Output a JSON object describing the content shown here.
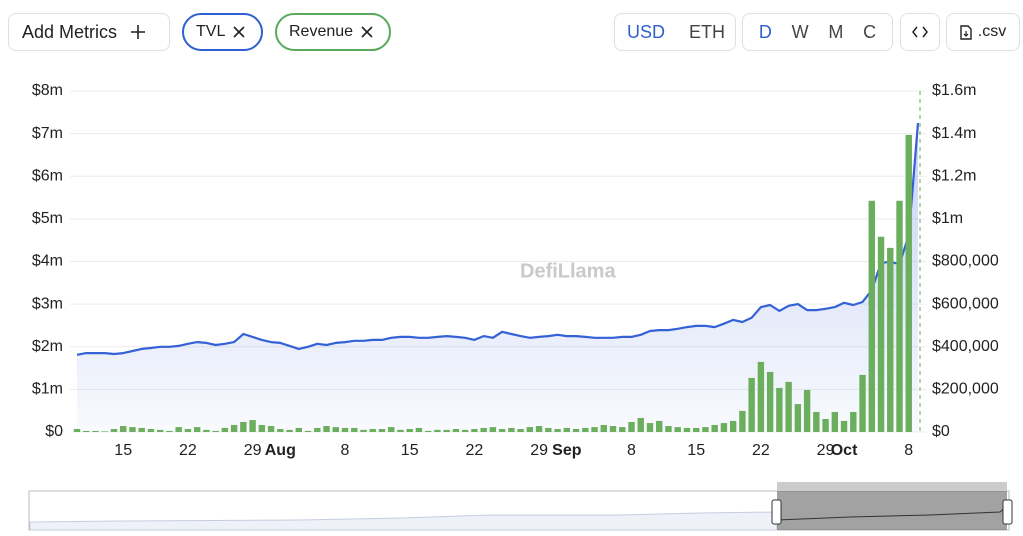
{
  "toolbar": {
    "add_metrics": "Add Metrics",
    "currencies": [
      "USD",
      "ETH"
    ],
    "intervals": [
      "D",
      "W",
      "M",
      "C"
    ],
    "csv": ".csv"
  },
  "chart_data": {
    "type": "combo",
    "watermark": "DefiLlama",
    "categories": [
      null,
      null,
      null,
      null,
      null,
      "15",
      null,
      null,
      null,
      null,
      null,
      null,
      "22",
      null,
      null,
      null,
      null,
      null,
      null,
      "29",
      null,
      null,
      "Aug",
      null,
      null,
      null,
      null,
      null,
      null,
      "8",
      null,
      null,
      null,
      null,
      null,
      null,
      "15",
      null,
      null,
      null,
      null,
      null,
      null,
      "22",
      null,
      null,
      null,
      null,
      null,
      null,
      "29",
      null,
      null,
      "Sep",
      null,
      null,
      null,
      null,
      null,
      null,
      "8",
      null,
      null,
      null,
      null,
      null,
      null,
      "15",
      null,
      null,
      null,
      null,
      null,
      null,
      "22",
      null,
      null,
      null,
      null,
      null,
      null,
      "29",
      null,
      "Oct",
      null,
      null,
      null,
      null,
      null,
      null,
      "8",
      null
    ],
    "series": [
      {
        "name": "TVL",
        "type": "line",
        "color": "#3461d6",
        "values": [
          1810000,
          1850000,
          1850000,
          1850000,
          1830000,
          1850000,
          1900000,
          1950000,
          1970000,
          2000000,
          2000000,
          2020000,
          2070000,
          2110000,
          2090000,
          2040000,
          2070000,
          2110000,
          2300000,
          2230000,
          2160000,
          2110000,
          2090000,
          2020000,
          1950000,
          2000000,
          2070000,
          2040000,
          2090000,
          2110000,
          2140000,
          2140000,
          2160000,
          2160000,
          2210000,
          2230000,
          2230000,
          2210000,
          2210000,
          2230000,
          2250000,
          2230000,
          2210000,
          2160000,
          2250000,
          2210000,
          2350000,
          2300000,
          2250000,
          2210000,
          2230000,
          2250000,
          2280000,
          2250000,
          2250000,
          2230000,
          2210000,
          2210000,
          2210000,
          2230000,
          2230000,
          2280000,
          2370000,
          2390000,
          2390000,
          2420000,
          2460000,
          2490000,
          2490000,
          2460000,
          2540000,
          2630000,
          2580000,
          2680000,
          2930000,
          2980000,
          2840000,
          2960000,
          3000000,
          2860000,
          2860000,
          2890000,
          2930000,
          3030000,
          2980000,
          3050000,
          3330000,
          3970000,
          3990000,
          3940000,
          4620000,
          7250000
        ]
      },
      {
        "name": "Revenue",
        "type": "bar",
        "color": "#6aae5e",
        "axis": "y2",
        "values": [
          14000,
          5000,
          5000,
          3000,
          14000,
          28000,
          23000,
          19000,
          14000,
          10000,
          5000,
          23000,
          14000,
          23000,
          10000,
          5000,
          19000,
          33000,
          47000,
          56000,
          33000,
          28000,
          14000,
          10000,
          19000,
          5000,
          19000,
          28000,
          23000,
          19000,
          19000,
          10000,
          14000,
          14000,
          23000,
          10000,
          14000,
          19000,
          5000,
          10000,
          10000,
          14000,
          10000,
          14000,
          19000,
          23000,
          14000,
          19000,
          14000,
          23000,
          28000,
          19000,
          14000,
          19000,
          14000,
          19000,
          23000,
          33000,
          28000,
          23000,
          47000,
          66000,
          42000,
          52000,
          28000,
          23000,
          19000,
          19000,
          23000,
          33000,
          42000,
          52000,
          99000,
          254000,
          329000,
          282000,
          207000,
          235000,
          131000,
          197000,
          94000,
          61000,
          94000,
          52000,
          94000,
          268000,
          1085000,
          916000,
          864000,
          1085000,
          1394000,
          null
        ]
      }
    ],
    "ylim": [
      0,
      8000000
    ],
    "yticks": [
      {
        "value": 0,
        "label": "$0"
      },
      {
        "value": 1000000,
        "label": "$1m"
      },
      {
        "value": 2000000,
        "label": "$2m"
      },
      {
        "value": 3000000,
        "label": "$3m"
      },
      {
        "value": 4000000,
        "label": "$4m"
      },
      {
        "value": 5000000,
        "label": "$5m"
      },
      {
        "value": 6000000,
        "label": "$6m"
      },
      {
        "value": 7000000,
        "label": "$7m"
      },
      {
        "value": 8000000,
        "label": "$8m"
      }
    ],
    "y2lim": [
      0,
      1600000
    ],
    "y2ticks": [
      {
        "value": 0,
        "label": "$0"
      },
      {
        "value": 200000,
        "label": "$200,000"
      },
      {
        "value": 400000,
        "label": "$400,000"
      },
      {
        "value": 600000,
        "label": "$600,000"
      },
      {
        "value": 800000,
        "label": "$800,000"
      },
      {
        "value": 1000000,
        "label": "$1m"
      },
      {
        "value": 1200000,
        "label": "$1.2m"
      },
      {
        "value": 1400000,
        "label": "$1.4m"
      },
      {
        "value": 1600000,
        "label": "$1.6m"
      }
    ],
    "grid": true
  }
}
